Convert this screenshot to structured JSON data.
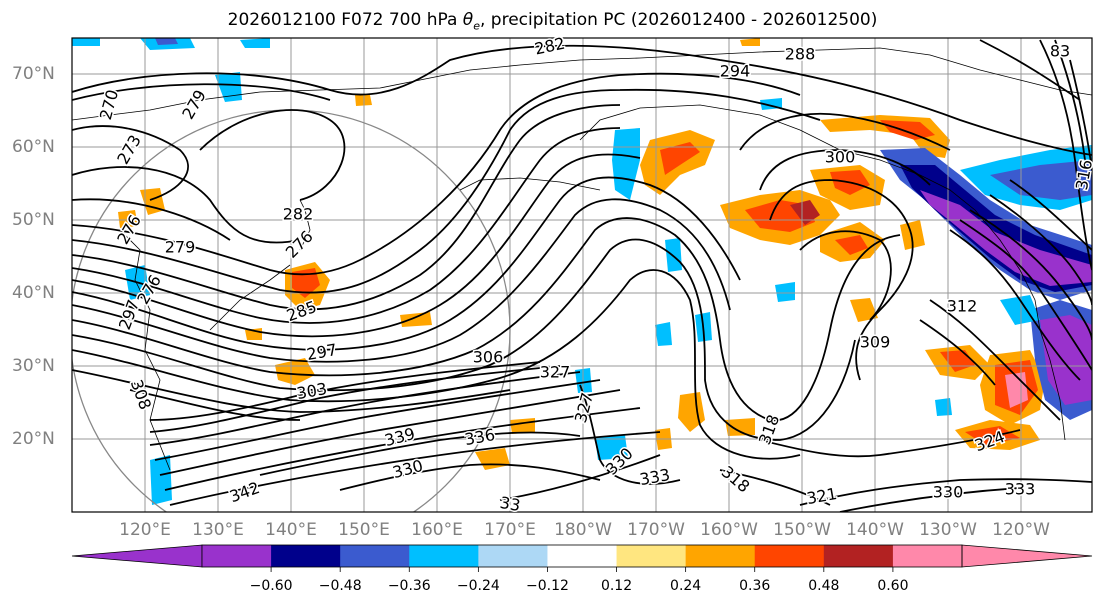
{
  "title": {
    "prefix": "2026012100 F072 700 hPa ",
    "theta": "θ",
    "theta_sub": "e",
    "suffix": ", precipitation PC (2026012400 - 2026012500)"
  },
  "lon_labels": [
    "120°E",
    "130°E",
    "140°E",
    "150°E",
    "160°E",
    "170°E",
    "180°W",
    "170°W",
    "160°W",
    "150°W",
    "140°W",
    "130°W",
    "120°W"
  ],
  "lat_labels": [
    "70°N",
    "60°N",
    "50°N",
    "40°N",
    "30°N",
    "20°N"
  ],
  "colorbar": {
    "colors": [
      "#9932cc",
      "#00008b",
      "#3b5bcf",
      "#00bfff",
      "#add8f5",
      "#ffffff",
      "#ffe680",
      "#ffa500",
      "#ff4500",
      "#b22222",
      "#ff88aa"
    ],
    "under_color": "#9932cc",
    "over_color": "#ff88aa",
    "tick_labels": [
      "−0.60",
      "−0.48",
      "−0.36",
      "−0.24",
      "−0.12",
      "0.12",
      "0.24",
      "0.36",
      "0.48",
      "0.60"
    ]
  },
  "contour_labels": [
    {
      "text": "282"
    },
    {
      "text": "288"
    },
    {
      "text": "294"
    },
    {
      "text": "270"
    },
    {
      "text": "273"
    },
    {
      "text": "279"
    },
    {
      "text": "279"
    },
    {
      "text": "300"
    },
    {
      "text": "276"
    },
    {
      "text": "276"
    },
    {
      "text": "276"
    },
    {
      "text": "282"
    },
    {
      "text": "285"
    },
    {
      "text": "297"
    },
    {
      "text": "297"
    },
    {
      "text": "303"
    },
    {
      "text": "306"
    },
    {
      "text": "327"
    },
    {
      "text": "327"
    },
    {
      "text": "312"
    },
    {
      "text": "309"
    },
    {
      "text": "318"
    },
    {
      "text": "339"
    },
    {
      "text": "336"
    },
    {
      "text": "330"
    },
    {
      "text": "330"
    },
    {
      "text": "333"
    },
    {
      "text": "318"
    },
    {
      "text": "321"
    },
    {
      "text": "324"
    },
    {
      "text": "330"
    },
    {
      "text": "333"
    },
    {
      "text": "342"
    },
    {
      "text": "33"
    },
    {
      "text": "308"
    },
    {
      "text": "316"
    },
    {
      "text": "83"
    }
  ]
}
